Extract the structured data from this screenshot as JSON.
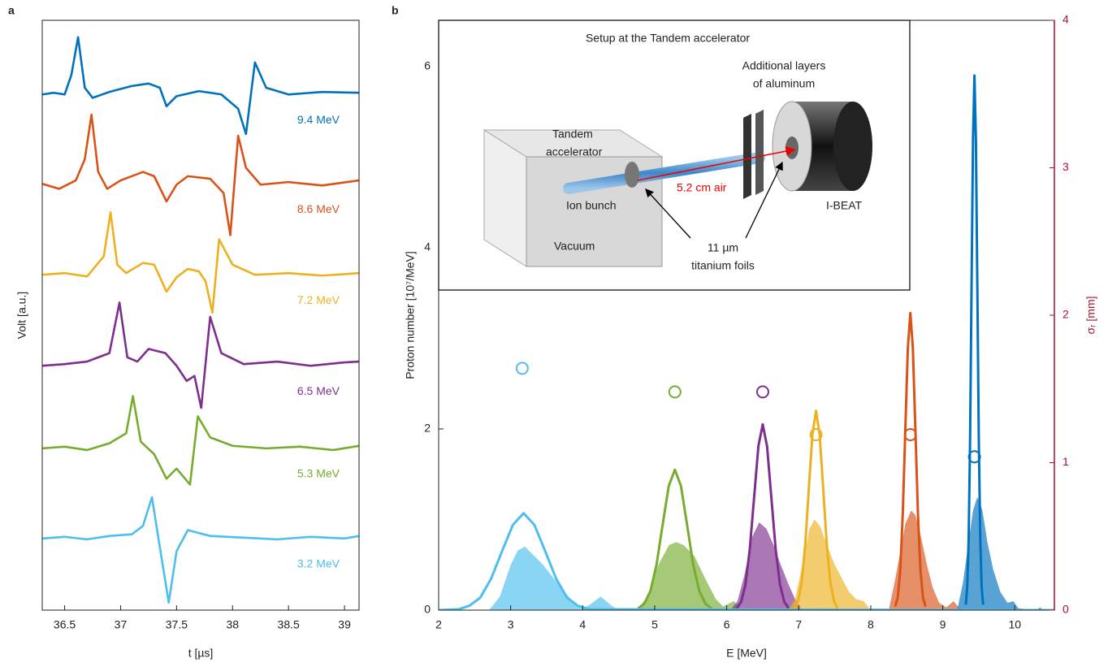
{
  "chart_data": [
    {
      "type": "line",
      "panel": "a",
      "xlabel": "t [µs]",
      "ylabel": "Volt [a.u.]",
      "xlim": [
        36.3,
        39.13
      ],
      "ylim": [
        0,
        7
      ],
      "xticks": [
        36.5,
        37,
        37.5,
        38,
        38.5,
        39
      ],
      "series": [
        {
          "name": "9.4 MeV",
          "color": "#0072BD",
          "x": [
            36.3,
            36.4,
            36.5,
            36.56,
            36.62,
            36.68,
            36.75,
            36.9,
            37.1,
            37.25,
            37.35,
            37.41,
            37.5,
            37.7,
            37.9,
            38.05,
            38.12,
            38.2,
            38.3,
            38.5,
            38.8,
            39.13
          ],
          "values": [
            6.12,
            6.14,
            6.12,
            6.35,
            6.8,
            6.2,
            6.08,
            6.15,
            6.22,
            6.25,
            6.2,
            5.98,
            6.1,
            6.16,
            6.12,
            5.95,
            5.65,
            6.5,
            6.2,
            6.12,
            6.15,
            6.14
          ]
        },
        {
          "name": "8.6 MeV",
          "color": "#D95319",
          "x": [
            36.3,
            36.45,
            36.6,
            36.68,
            36.74,
            36.8,
            36.88,
            37.0,
            37.2,
            37.3,
            37.41,
            37.5,
            37.6,
            37.8,
            37.92,
            37.98,
            38.05,
            38.12,
            38.25,
            38.5,
            38.8,
            39.13
          ],
          "values": [
            5.06,
            5.0,
            5.1,
            5.35,
            5.88,
            5.2,
            5.0,
            5.1,
            5.2,
            5.15,
            4.85,
            5.05,
            5.15,
            5.12,
            4.95,
            4.45,
            5.63,
            5.25,
            5.05,
            5.08,
            5.04,
            5.1
          ]
        },
        {
          "name": "7.2 MeV",
          "color": "#EDB120",
          "x": [
            36.3,
            36.5,
            36.7,
            36.85,
            36.91,
            36.97,
            37.05,
            37.2,
            37.3,
            37.41,
            37.5,
            37.6,
            37.7,
            37.76,
            37.82,
            37.88,
            38.0,
            38.2,
            38.5,
            38.8,
            39.13
          ],
          "values": [
            3.98,
            4.0,
            3.96,
            4.2,
            4.72,
            4.1,
            4.0,
            4.12,
            4.1,
            3.78,
            3.95,
            4.05,
            4.02,
            3.9,
            3.53,
            4.4,
            4.1,
            3.98,
            4.0,
            3.97,
            4.0
          ]
        },
        {
          "name": "6.5 MeV",
          "color": "#7E2F8E",
          "x": [
            36.3,
            36.5,
            36.7,
            36.9,
            36.99,
            37.06,
            37.15,
            37.25,
            37.4,
            37.5,
            37.59,
            37.66,
            37.72,
            37.8,
            37.9,
            38.1,
            38.4,
            38.7,
            39.0,
            39.13
          ],
          "values": [
            2.9,
            2.92,
            2.95,
            3.05,
            3.65,
            3.0,
            2.95,
            3.1,
            3.05,
            2.9,
            2.72,
            2.78,
            2.4,
            3.48,
            3.05,
            2.92,
            2.95,
            2.9,
            2.94,
            2.95
          ]
        },
        {
          "name": "5.3 MeV",
          "color": "#77AC30",
          "x": [
            36.3,
            36.5,
            36.7,
            36.9,
            37.05,
            37.11,
            37.18,
            37.3,
            37.41,
            37.5,
            37.62,
            37.69,
            37.8,
            38.0,
            38.3,
            38.6,
            38.9,
            39.13
          ],
          "values": [
            1.92,
            1.94,
            1.9,
            1.98,
            2.1,
            2.54,
            2.0,
            1.85,
            1.56,
            1.68,
            1.49,
            2.3,
            2.05,
            1.95,
            1.92,
            1.94,
            1.9,
            1.95
          ]
        },
        {
          "name": "3.2 MeV",
          "color": "#4DBEEE",
          "x": [
            36.3,
            36.5,
            36.7,
            36.9,
            37.1,
            37.2,
            37.28,
            37.35,
            37.43,
            37.5,
            37.6,
            37.8,
            38.1,
            38.4,
            38.7,
            39.0,
            39.13
          ],
          "values": [
            0.85,
            0.87,
            0.84,
            0.88,
            0.9,
            1.0,
            1.34,
            0.75,
            0.09,
            0.7,
            0.95,
            0.88,
            0.86,
            0.84,
            0.87,
            0.85,
            0.88
          ]
        }
      ]
    },
    {
      "type": "line",
      "panel": "b",
      "xlabel": "E [MeV]",
      "ylabel": "Proton number  [10⁷/MeV]",
      "y2label": "σᵣ [mm]",
      "y2color": "#A2142F",
      "xlim": [
        2,
        10.55
      ],
      "ylim": [
        0,
        6.51
      ],
      "y2lim": [
        0,
        4
      ],
      "xticks": [
        2,
        3,
        4,
        5,
        6,
        7,
        8,
        9,
        10
      ],
      "yticks": [
        0,
        2,
        4,
        6
      ],
      "y2ticks": [
        0,
        1,
        2,
        3,
        4
      ],
      "series": [
        {
          "type": "area",
          "color": "#4DBEEE",
          "x": [
            2.7,
            2.85,
            3.0,
            3.1,
            3.2,
            3.3,
            3.45,
            3.6,
            3.75,
            3.9,
            4.0,
            4.1,
            4.25,
            4.4,
            4.5
          ],
          "values": [
            0,
            0.15,
            0.5,
            0.66,
            0.7,
            0.62,
            0.5,
            0.35,
            0.2,
            0.06,
            0.02,
            0.06,
            0.15,
            0.05,
            0
          ]
        },
        {
          "type": "area",
          "color": "#77AC30",
          "x": [
            4.75,
            4.9,
            5.05,
            5.2,
            5.3,
            5.4,
            5.55,
            5.7,
            5.85,
            5.95,
            6.05,
            6.1,
            6.2
          ],
          "values": [
            0,
            0.15,
            0.5,
            0.72,
            0.75,
            0.72,
            0.6,
            0.35,
            0.12,
            0.04,
            0.08,
            0.1,
            0
          ]
        },
        {
          "type": "area",
          "color": "#7E2F8E",
          "x": [
            6.05,
            6.15,
            6.25,
            6.35,
            6.45,
            6.55,
            6.65,
            6.75,
            6.85,
            6.95,
            7.05
          ],
          "values": [
            0,
            0.1,
            0.4,
            0.8,
            0.97,
            0.9,
            0.72,
            0.5,
            0.3,
            0.12,
            0
          ]
        },
        {
          "type": "area",
          "color": "#EDB120",
          "x": [
            6.85,
            6.95,
            7.05,
            7.15,
            7.22,
            7.3,
            7.4,
            7.5,
            7.6,
            7.7,
            7.8,
            7.9,
            8.0
          ],
          "values": [
            0,
            0.12,
            0.5,
            0.9,
            1.0,
            0.92,
            0.7,
            0.5,
            0.35,
            0.2,
            0.12,
            0.1,
            0
          ]
        },
        {
          "type": "area",
          "color": "#D95319",
          "x": [
            8.25,
            8.33,
            8.4,
            8.48,
            8.56,
            8.62,
            8.7,
            8.78,
            8.86,
            8.95,
            9.05,
            9.15,
            9.25
          ],
          "values": [
            0,
            0.3,
            0.6,
            0.95,
            1.1,
            1.05,
            0.8,
            0.5,
            0.25,
            0.08,
            0.03,
            0.1,
            0
          ]
        },
        {
          "type": "area",
          "color": "#0072BD",
          "x": [
            9.2,
            9.28,
            9.35,
            9.42,
            9.48,
            9.55,
            9.62,
            9.7,
            9.8,
            9.9,
            9.98,
            10.05,
            10.3,
            10.35,
            10.4
          ],
          "values": [
            0,
            0.3,
            0.7,
            1.1,
            1.25,
            1.1,
            0.75,
            0.45,
            0.2,
            0.08,
            0.1,
            0.02,
            0,
            0.03,
            0
          ]
        },
        {
          "type": "line",
          "color": "#77AC30",
          "x": [
            4.77,
            4.855,
            4.94,
            5.025,
            5.11,
            5.195,
            5.28,
            5.365,
            5.45,
            5.535,
            5.62,
            5.705,
            5.79
          ],
          "values": [
            0.02,
            0.07,
            0.21,
            0.5,
            0.94,
            1.37,
            1.55,
            1.37,
            0.94,
            0.5,
            0.21,
            0.07,
            0.02
          ]
        },
        {
          "type": "line",
          "color": "#7E2F8E",
          "x": [
            6.14,
            6.2,
            6.26,
            6.32,
            6.38,
            6.44,
            6.5,
            6.56,
            6.62,
            6.68,
            6.74,
            6.8,
            6.86
          ],
          "values": [
            0.02,
            0.09,
            0.28,
            0.67,
            1.24,
            1.81,
            2.05,
            1.81,
            1.24,
            0.67,
            0.28,
            0.09,
            0.02
          ]
        },
        {
          "type": "line",
          "color": "#EDB120",
          "x": [
            6.94,
            6.99,
            7.04,
            7.09,
            7.14,
            7.19,
            7.24,
            7.29,
            7.34,
            7.39,
            7.44,
            7.49,
            7.54
          ],
          "values": [
            0.02,
            0.1,
            0.3,
            0.72,
            1.34,
            1.94,
            2.2,
            1.94,
            1.34,
            0.72,
            0.3,
            0.1,
            0.02
          ]
        },
        {
          "type": "line",
          "color": "#D95319",
          "x": [
            8.34,
            8.375,
            8.41,
            8.445,
            8.48,
            8.515,
            8.55,
            8.585,
            8.62,
            8.655,
            8.69,
            8.725,
            8.76
          ],
          "values": [
            0.04,
            0.14,
            0.44,
            1.07,
            1.99,
            2.89,
            3.28,
            2.89,
            1.99,
            1.07,
            0.44,
            0.14,
            0.04
          ]
        },
        {
          "type": "line",
          "color": "#0072BD",
          "x": [
            9.32,
            9.34,
            9.36,
            9.38,
            9.4,
            9.42,
            9.44,
            9.46,
            9.48,
            9.5,
            9.52,
            9.54,
            9.56
          ],
          "values": [
            0.06,
            0.26,
            0.8,
            1.92,
            3.58,
            5.2,
            5.9,
            5.2,
            3.58,
            1.92,
            0.8,
            0.26,
            0.06
          ]
        },
        {
          "type": "line",
          "color": "#4DBEEE",
          "x": [
            2,
            2.28,
            2.43,
            2.58,
            2.73,
            2.88,
            3.03,
            3.18,
            3.33,
            3.48,
            3.63,
            3.78,
            3.93,
            4.08,
            10.55
          ],
          "values": [
            0,
            0.01,
            0.05,
            0.14,
            0.35,
            0.65,
            0.94,
            1.07,
            0.94,
            0.65,
            0.35,
            0.14,
            0.05,
            0.01,
            0
          ]
        },
        {
          "type": "scatter",
          "axis": "y2",
          "color": "#4DBEEE",
          "x": [
            3.16
          ],
          "values": [
            1.64
          ]
        },
        {
          "type": "scatter",
          "axis": "y2",
          "color": "#77AC30",
          "x": [
            5.28
          ],
          "values": [
            1.48
          ]
        },
        {
          "type": "scatter",
          "axis": "y2",
          "color": "#7E2F8E",
          "x": [
            6.5
          ],
          "values": [
            1.48
          ]
        },
        {
          "type": "scatter",
          "axis": "y2",
          "color": "#EDB120",
          "x": [
            7.24
          ],
          "values": [
            1.19
          ]
        },
        {
          "type": "scatter",
          "axis": "y2",
          "color": "#D95319",
          "x": [
            8.55
          ],
          "values": [
            1.19
          ]
        },
        {
          "type": "scatter",
          "axis": "y2",
          "color": "#0072BD",
          "x": [
            9.44
          ],
          "values": [
            1.04
          ]
        }
      ]
    }
  ],
  "inset": {
    "title": "Setup at the Tandem accelerator",
    "labels": [
      "Additional layers",
      "of aluminum",
      "Tandem",
      "accelerator",
      "Ion bunch",
      "Vacuum",
      "5.2 cm air",
      "I-BEAT",
      "11 µm",
      "titanium foils"
    ]
  }
}
